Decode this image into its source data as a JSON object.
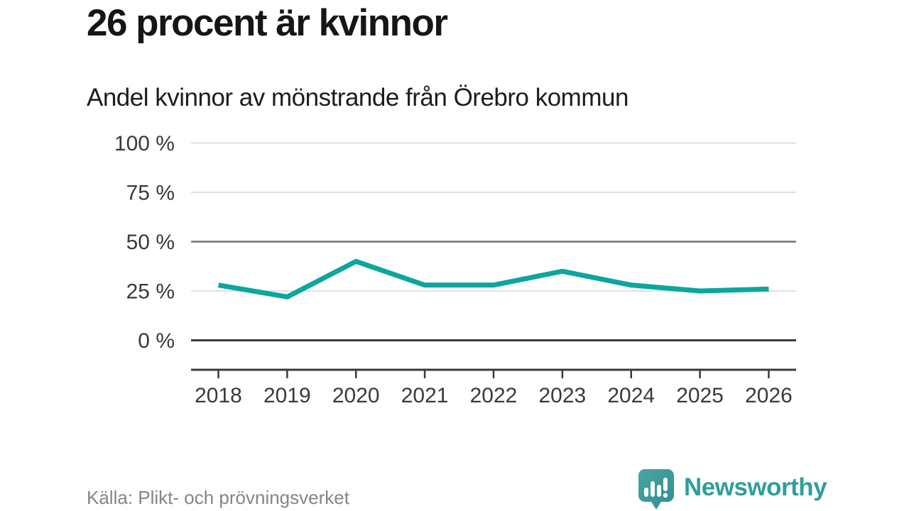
{
  "header": {
    "title": "26 procent är kvinnor",
    "subtitle": "Andel kvinnor av mönstrande från Örebro kommun"
  },
  "footer": {
    "source": "Källa: Plikt- och prövningsverket",
    "brand": "Newsworthy"
  },
  "colors": {
    "line": "#0ca69e",
    "grid_light": "#e0e0e0",
    "grid_mid": "#70707a",
    "grid_zero": "#3b3b3b",
    "axis": "#3b3b3b",
    "tick_label": "#3a3a3a",
    "brand_teal": "#2f9e9b",
    "logo_teal": "#44a09e",
    "logo_teal_dark": "#2e8f90",
    "source_gray": "#84848c"
  },
  "chart_data": {
    "type": "line",
    "title": "26 procent är kvinnor",
    "subtitle": "Andel kvinnor av mönstrande från Örebro kommun",
    "x": [
      2018,
      2019,
      2020,
      2021,
      2022,
      2023,
      2024,
      2025,
      2026
    ],
    "series": [
      {
        "name": "Andel kvinnor av mönstrande (%)",
        "values": [
          28,
          22,
          40,
          28,
          28,
          35,
          28,
          25,
          26
        ]
      }
    ],
    "xlabel": "",
    "ylabel": "",
    "ylim": [
      0,
      100
    ],
    "yticks": [
      0,
      25,
      50,
      75,
      100
    ],
    "ytick_suffix": " %",
    "layout": {
      "grid": "horizontal",
      "legend": "none",
      "emphasis_ytick": 50,
      "x_axis_line": true
    }
  }
}
